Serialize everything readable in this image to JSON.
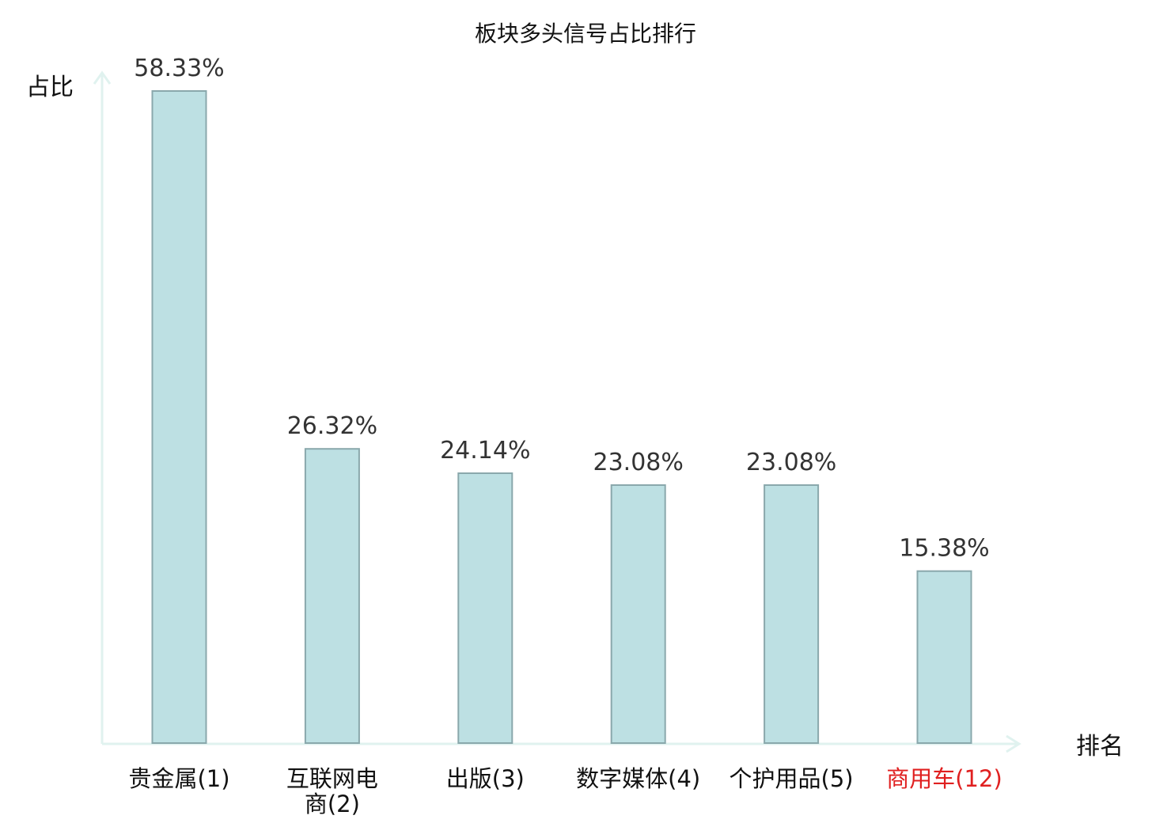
{
  "colors": {
    "bar_fill": "#bde0e3",
    "bar_stroke": "#8aa8ac",
    "axis": "#e0f2ef",
    "highlight_label": "#e02020",
    "text": "#111111",
    "value_text": "#333333"
  },
  "chart_data": {
    "type": "bar",
    "title": "板块多头信号占比排行",
    "xlabel": "排名",
    "ylabel": "占比",
    "ylim": [
      0,
      60
    ],
    "grid": false,
    "categories": [
      {
        "name_lines": [
          "贵金属"
        ],
        "rank": "(1)",
        "highlight": false
      },
      {
        "name_lines": [
          "互联网电",
          "商"
        ],
        "rank": "(2)",
        "highlight": false
      },
      {
        "name_lines": [
          "出版"
        ],
        "rank": "(3)",
        "highlight": false
      },
      {
        "name_lines": [
          "数字媒体"
        ],
        "rank": "(4)",
        "highlight": false
      },
      {
        "name_lines": [
          "个护用品"
        ],
        "rank": "(5)",
        "highlight": false
      },
      {
        "name_lines": [
          "商用车"
        ],
        "rank": "(12)",
        "highlight": true
      }
    ],
    "values": [
      58.33,
      26.32,
      24.14,
      23.08,
      23.08,
      15.38
    ],
    "value_labels": [
      "58.33%",
      "26.32%",
      "24.14%",
      "23.08%",
      "23.08%",
      "15.38%"
    ]
  }
}
